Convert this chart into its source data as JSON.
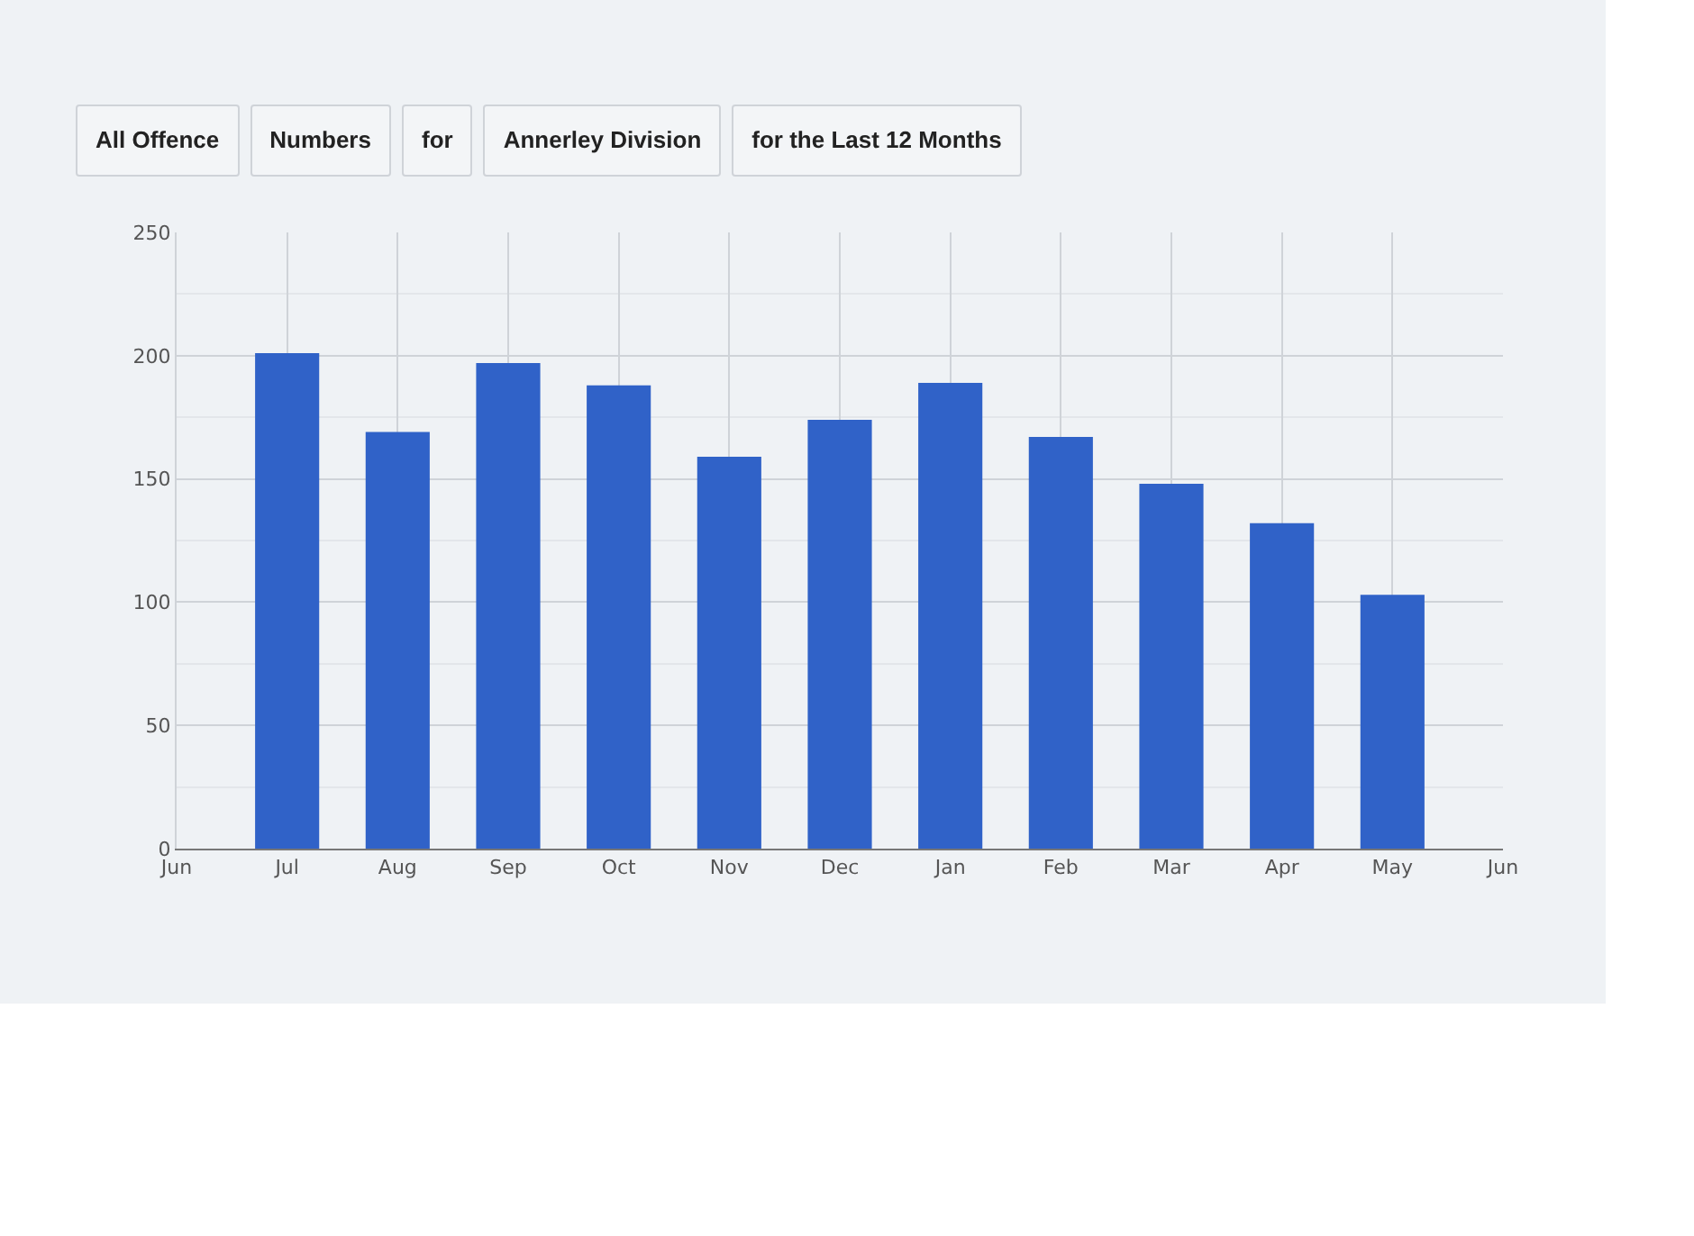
{
  "chart_data": {
    "type": "bar",
    "categories": [
      "Jun",
      "Jul",
      "Aug",
      "Sep",
      "Oct",
      "Nov",
      "Dec",
      "Jan",
      "Feb",
      "Mar",
      "Apr",
      "May",
      "Jun"
    ],
    "values": [
      null,
      201,
      169,
      197,
      188,
      159,
      174,
      189,
      167,
      148,
      132,
      103,
      null
    ],
    "color": "#3062c8",
    "ylim": [
      0,
      250
    ],
    "yticks": [
      0,
      50,
      100,
      150,
      200,
      250
    ],
    "grid": true,
    "annotations": [
      "All Offence",
      "Numbers",
      "for",
      "Annerley Division",
      "for the Last 12 Months"
    ]
  }
}
